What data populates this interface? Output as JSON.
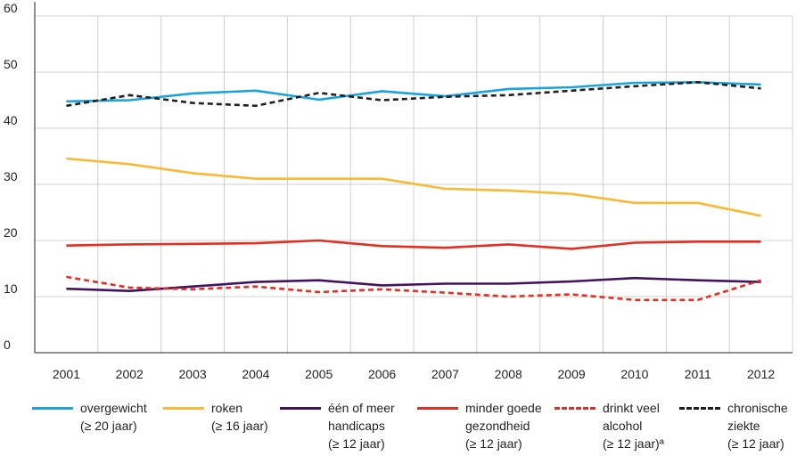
{
  "chart_data": {
    "type": "line",
    "categories": [
      "2001",
      "2002",
      "2003",
      "2004",
      "2005",
      "2006",
      "2007",
      "2008",
      "2009",
      "2010",
      "2011",
      "2012"
    ],
    "ylim": [
      0,
      60
    ],
    "yticks": [
      "0",
      "10",
      "20",
      "30",
      "40",
      "50",
      "60"
    ],
    "grid": true,
    "legend_placement": "bottom",
    "series": [
      {
        "name": "overgewicht",
        "sub": [
          "(≥ 20 jaar)"
        ],
        "color": "#1aa3dd",
        "dash": false,
        "values": [
          44.8,
          45.0,
          46.2,
          46.7,
          45.1,
          46.6,
          45.7,
          47.0,
          47.3,
          48.1,
          48.2,
          47.8
        ]
      },
      {
        "name": "roken",
        "sub": [
          "(≥ 16 jaar)"
        ],
        "color": "#f9b934",
        "dash": false,
        "values": [
          34.6,
          33.6,
          32.0,
          31.0,
          31.0,
          31.0,
          29.2,
          28.9,
          28.3,
          26.7,
          26.7,
          24.4
        ]
      },
      {
        "name": "één of meer",
        "sub": [
          "handicaps",
          "(≥ 12 jaar)"
        ],
        "color": "#42145f",
        "dash": false,
        "values": [
          11.4,
          11.0,
          11.8,
          12.6,
          12.9,
          12.0,
          12.3,
          12.3,
          12.7,
          13.3,
          12.9,
          12.6
        ]
      },
      {
        "name": "minder goede",
        "sub": [
          "gezondheid",
          "(≥ 12 jaar)"
        ],
        "color": "#e42e21",
        "dash": false,
        "values": [
          19.1,
          19.3,
          19.4,
          19.5,
          20.0,
          19.0,
          18.7,
          19.3,
          18.5,
          19.6,
          19.8,
          19.8
        ]
      },
      {
        "name": "drinkt veel",
        "sub": [
          "alcohol",
          "(≥ 12 jaar)ª"
        ],
        "color": "#e42e21",
        "dash": true,
        "values": [
          13.5,
          11.6,
          11.3,
          11.8,
          10.8,
          11.3,
          10.7,
          10.0,
          10.4,
          9.4,
          9.4,
          12.9
        ]
      },
      {
        "name": "chronische",
        "sub": [
          "ziekte",
          "(≥ 12 jaar)"
        ],
        "color": "#231f20",
        "dash": true,
        "values": [
          44.0,
          45.9,
          44.5,
          44.0,
          46.3,
          45.0,
          45.6,
          45.9,
          46.7,
          47.5,
          48.2,
          47.1
        ]
      }
    ]
  }
}
